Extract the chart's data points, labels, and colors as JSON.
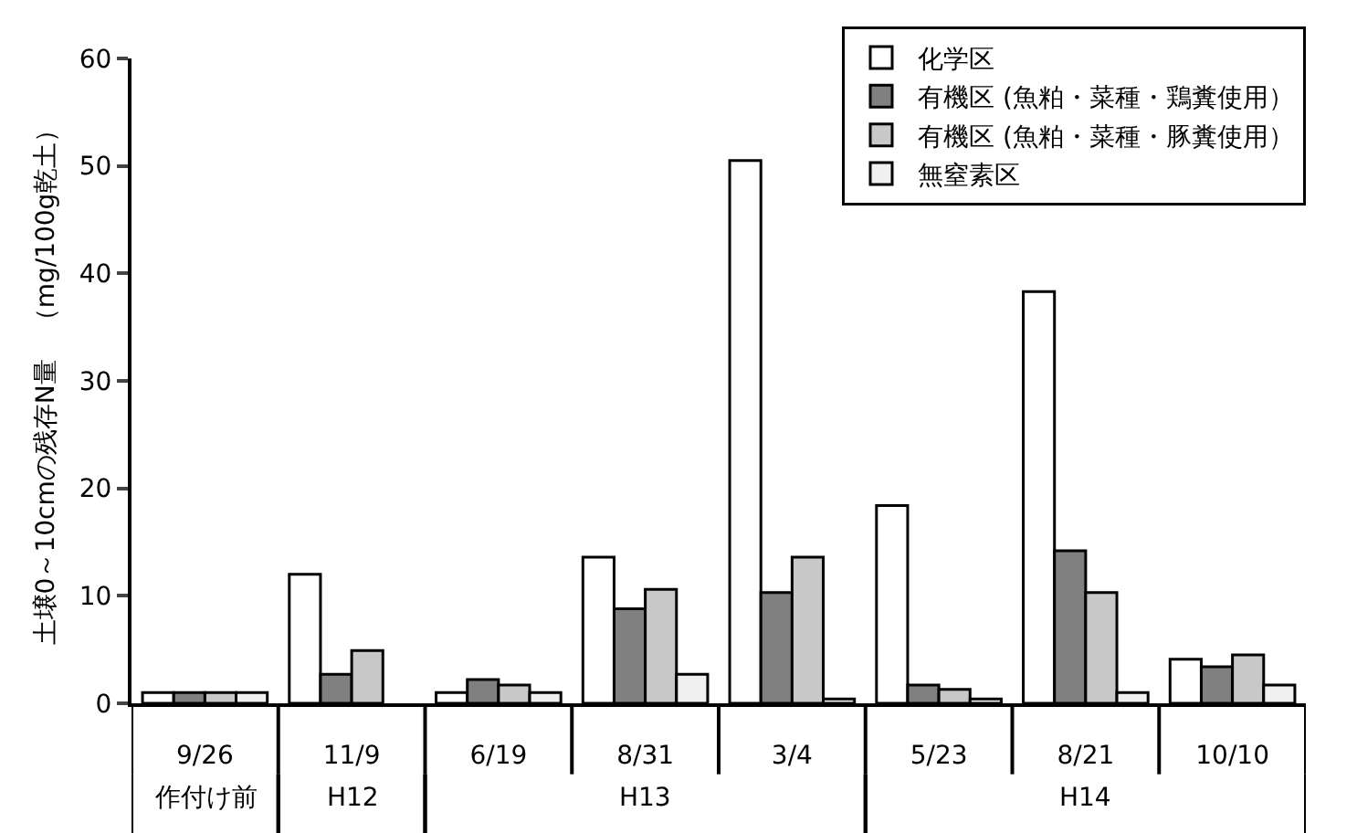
{
  "chart_data": {
    "type": "bar",
    "ylabel": "土壌0～10cmの残存N量　（mg/100g乾土）",
    "categories": [
      "9/26",
      "11/9",
      "6/19",
      "8/31",
      "3/4",
      "5/23",
      "8/21",
      "10/10"
    ],
    "series": [
      {
        "name": "化学区",
        "color": "#ffffff",
        "values": [
          1.0,
          12.0,
          1.0,
          13.6,
          50.5,
          18.4,
          38.3,
          4.1
        ]
      },
      {
        "name": "有機区 (魚粕・菜種・鶏糞使用）",
        "color": "#808080",
        "values": [
          1.0,
          2.7,
          2.2,
          8.8,
          10.3,
          1.7,
          14.2,
          3.4
        ]
      },
      {
        "name": "有機区 (魚粕・菜種・豚糞使用）",
        "color": "#c8c8c8",
        "values": [
          1.0,
          4.9,
          1.7,
          10.6,
          13.6,
          1.3,
          10.3,
          4.5
        ]
      },
      {
        "name": "無窒素区",
        "color": "#f0f0f0",
        "values": [
          1.0,
          null,
          1.0,
          2.7,
          0.4,
          0.4,
          1.0,
          1.7
        ]
      }
    ],
    "ylim": [
      0,
      60
    ],
    "yticks": [
      0,
      10,
      20,
      30,
      40,
      50,
      60
    ],
    "legend": "top right",
    "annotations": [
      "作付け前",
      "H12",
      "H13",
      "H14"
    ]
  }
}
